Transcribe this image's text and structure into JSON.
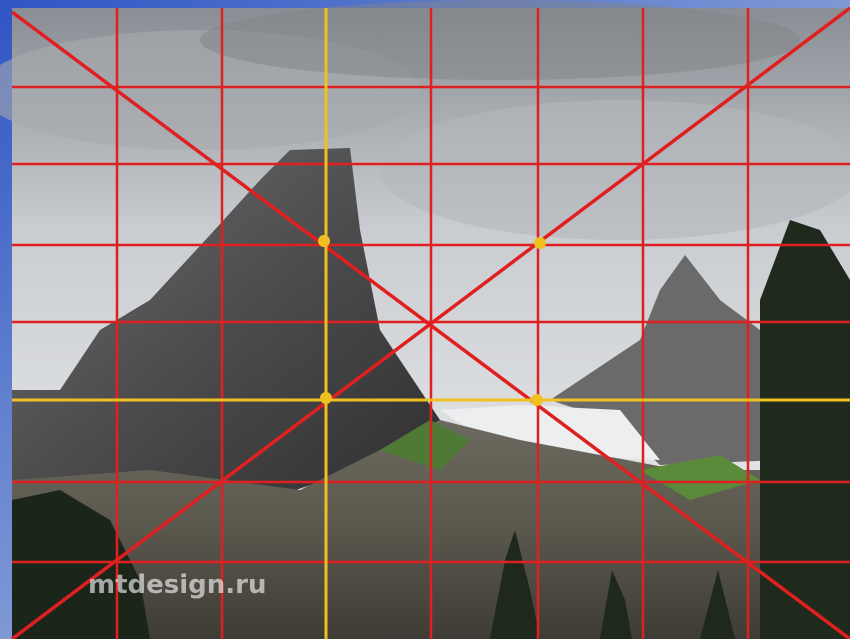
{
  "watermark": "mtdesign.ru"
}
